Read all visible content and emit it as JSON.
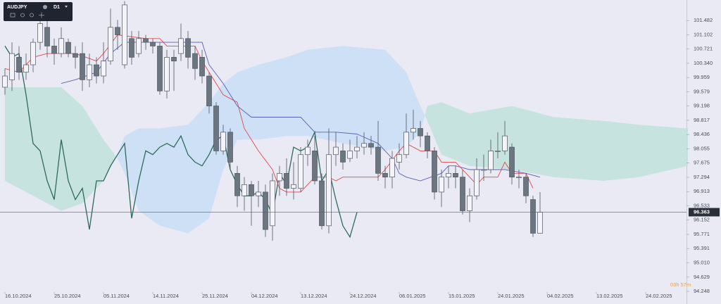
{
  "chart_data": {
    "type": "candlestick",
    "symbol": "AUDJPY",
    "timeframe": "D1",
    "countdown": "03h 57m",
    "current_price": 96.363,
    "ylim": [
      94.23,
      102.03
    ],
    "yticks": [
      101.482,
      101.102,
      100.721,
      {
        "value": 100.34,
        "label": "100.340"
      },
      99.959,
      99.579,
      99.198,
      98.817,
      98.436,
      98.055,
      97.675,
      97.294,
      96.913,
      96.533,
      96.152,
      95.771,
      95.391,
      {
        "value": 95.01,
        "label": "95.010"
      },
      94.629,
      94.248
    ],
    "xlim": [
      -0.7,
      96.8
    ],
    "xticks": [
      {
        "value": 0,
        "label": "16.10.2024"
      },
      {
        "value": 7,
        "label": "25.10.2024"
      },
      {
        "value": 14,
        "label": "05.11.2024"
      },
      {
        "value": 21,
        "label": "14.11.2024"
      },
      {
        "value": 28,
        "label": "25.11.2024"
      },
      {
        "value": 35,
        "label": "04.12.2024"
      },
      {
        "value": 42,
        "label": "13.12.2024"
      },
      {
        "value": 49,
        "label": "24.12.2024"
      },
      {
        "value": 56,
        "label": "06.01.2025"
      },
      {
        "value": 63,
        "label": "15.01.2025"
      },
      {
        "value": 70,
        "label": "24.01.2025"
      },
      {
        "value": 77,
        "label": "04.02.2025"
      },
      {
        "value": 84,
        "label": "13.02.2025"
      },
      {
        "value": 91,
        "label": "24.02.2025"
      }
    ],
    "up_color": "#f3f3f8",
    "down_color": "#6b7680",
    "open": [
      99.7,
      99.9,
      100.5,
      100.1,
      100.3,
      100.9,
      101.3,
      100.8,
      100.6,
      100.9,
      100.6,
      100.6,
      99.9,
      100.3,
      100.0,
      100.4,
      101.3,
      100.3,
      101.0,
      100.6,
      101.0,
      100.9,
      100.8,
      99.6,
      100.5,
      100.6,
      101.0,
      100.6,
      100.5,
      100.0,
      99.2,
      98.0,
      98.5,
      97.4,
      96.8,
      97.1,
      96.8,
      96.9,
      96.0,
      97.2,
      97.4,
      97.0,
      97.0,
      97.9,
      98.0,
      97.2,
      96.0,
      97.9,
      98.0,
      97.8,
      98.0,
      98.1,
      98.2,
      98.1,
      97.4,
      97.3,
      97.7,
      97.9,
      98.5,
      98.6,
      98.4,
      98.0,
      96.9,
      97.3,
      97.4,
      97.3,
      96.4,
      96.8,
      97.5,
      97.5,
      98.0,
      98.0,
      98.1,
      97.3,
      97.3,
      96.7,
      95.8
    ],
    "high": [
      100.2,
      100.9,
      100.8,
      100.6,
      101.0,
      101.7,
      101.5,
      101.0,
      101.3,
      101.0,
      100.8,
      100.9,
      100.6,
      100.5,
      100.9,
      101.8,
      101.5,
      102.0,
      101.2,
      101.2,
      101.1,
      101.0,
      100.9,
      100.7,
      100.7,
      101.4,
      101.2,
      100.8,
      100.7,
      100.1,
      99.3,
      98.7,
      98.6,
      97.6,
      97.3,
      97.2,
      97.2,
      97.1,
      97.4,
      97.6,
      97.8,
      97.7,
      98.1,
      98.3,
      98.4,
      97.4,
      98.6,
      98.5,
      98.2,
      98.3,
      98.4,
      98.5,
      98.4,
      98.8,
      97.6,
      98.0,
      98.2,
      99.0,
      99.1,
      98.8,
      98.5,
      98.1,
      97.5,
      97.6,
      97.6,
      97.5,
      97.0,
      97.8,
      97.9,
      98.3,
      98.5,
      98.8,
      98.2,
      97.5,
      97.4,
      96.8,
      96.9
    ],
    "low": [
      99.5,
      99.6,
      99.9,
      99.9,
      100.1,
      100.7,
      100.5,
      100.3,
      100.5,
      100.5,
      100.2,
      99.6,
      99.7,
      99.8,
      99.8,
      100.3,
      100.7,
      100.2,
      100.3,
      100.5,
      100.7,
      100.6,
      99.5,
      99.4,
      99.6,
      100.4,
      100.2,
      99.9,
      99.8,
      99.0,
      97.9,
      97.9,
      97.5,
      96.5,
      96.4,
      96.0,
      96.5,
      95.7,
      95.6,
      96.8,
      96.8,
      96.7,
      96.9,
      97.6,
      97.1,
      95.9,
      95.8,
      97.6,
      97.5,
      97.7,
      97.8,
      97.9,
      97.9,
      97.2,
      97.0,
      97.0,
      97.5,
      97.8,
      98.3,
      98.1,
      97.8,
      96.7,
      96.5,
      97.0,
      97.0,
      96.3,
      96.1,
      96.7,
      97.2,
      97.4,
      97.8,
      97.9,
      97.1,
      97.0,
      96.6,
      95.7,
      95.8
    ],
    "close": [
      100.0,
      100.6,
      100.1,
      100.3,
      100.9,
      101.4,
      100.8,
      100.6,
      101.0,
      100.6,
      100.5,
      99.9,
      100.3,
      100.0,
      100.4,
      101.3,
      101.1,
      101.9,
      100.5,
      101.0,
      100.9,
      100.8,
      99.6,
      100.5,
      100.4,
      101.0,
      100.5,
      100.2,
      100.0,
      99.2,
      98.0,
      98.5,
      97.7,
      96.8,
      97.1,
      96.8,
      96.9,
      95.9,
      97.2,
      97.4,
      97.0,
      97.1,
      97.9,
      98.1,
      97.2,
      96.0,
      97.9,
      98.1,
      97.7,
      98.0,
      98.1,
      98.2,
      98.1,
      97.4,
      97.3,
      97.8,
      97.9,
      98.5,
      98.6,
      98.4,
      98.0,
      96.9,
      97.3,
      97.4,
      97.3,
      96.4,
      96.8,
      97.5,
      97.5,
      98.0,
      98.0,
      98.4,
      97.3,
      97.3,
      96.8,
      95.8,
      96.363
    ],
    "tenkan": {
      "color": "#e0474c",
      "x": [
        0,
        2,
        4,
        6,
        10,
        13,
        14,
        16,
        20,
        22,
        23,
        27,
        28,
        30,
        31,
        33,
        34,
        36,
        38,
        39,
        40,
        42,
        44,
        46,
        47,
        48,
        53,
        54,
        56,
        57,
        59,
        61,
        62,
        64,
        65,
        67,
        68,
        70,
        71,
        72,
        74,
        75
      ],
      "values": [
        100.2,
        100.1,
        100.5,
        100.6,
        100.6,
        100.4,
        100.6,
        101.1,
        101.0,
        101.0,
        100.8,
        100.8,
        100.4,
        99.8,
        99.5,
        99.3,
        98.6,
        98.0,
        97.5,
        97.0,
        96.9,
        96.9,
        97.3,
        97.3,
        97.2,
        97.3,
        97.3,
        97.5,
        98.0,
        98.2,
        98.0,
        98.0,
        97.7,
        97.7,
        97.5,
        97.1,
        97.3,
        97.3,
        97.7,
        97.4,
        97.4,
        97.0
      ]
    },
    "kijun": {
      "color": "#5b5fb5",
      "x": [
        8,
        10,
        13,
        15,
        17,
        25,
        28,
        29,
        31,
        33,
        35,
        42,
        44,
        47,
        50,
        53,
        55,
        56,
        57,
        59,
        62,
        63,
        64,
        66,
        70,
        71,
        74,
        76
      ],
      "values": [
        99.8,
        99.9,
        100.1,
        100.6,
        100.9,
        100.9,
        100.9,
        100.3,
        99.8,
        99.2,
        98.9,
        98.9,
        98.5,
        98.5,
        98.45,
        98.2,
        97.8,
        97.4,
        97.3,
        97.2,
        97.4,
        97.6,
        97.6,
        97.5,
        97.5,
        97.5,
        97.4,
        97.3
      ]
    },
    "chikou": {
      "color": "#2e6b5a",
      "x": [
        0,
        1,
        2,
        3,
        4,
        5,
        6,
        7,
        8,
        9,
        10,
        11,
        12,
        13,
        14,
        15,
        16,
        17,
        18,
        19,
        20,
        21,
        22,
        23,
        24,
        25,
        26,
        27,
        28,
        29,
        30,
        31,
        32,
        33,
        34,
        35,
        36,
        37,
        38,
        39,
        40,
        41,
        42,
        43,
        44,
        45,
        46,
        47,
        48,
        49,
        50
      ],
      "values": [
        100.8,
        100.5,
        100.6,
        99.5,
        98.2,
        98.0,
        97.2,
        96.7,
        98.3,
        97.2,
        96.7,
        97.0,
        95.9,
        97.2,
        97.2,
        97.6,
        97.9,
        98.2,
        96.2,
        97.2,
        98.0,
        97.9,
        98.1,
        98.2,
        98.1,
        98.4,
        97.9,
        97.7,
        97.6,
        97.9,
        98.3,
        98.4,
        97.5,
        97.1,
        96.8,
        96.8,
        96.9,
        96.7,
        96.3,
        97.4,
        97.1,
        98.1,
        98.0,
        98.1,
        98.5,
        97.2,
        97.5,
        96.7,
        96.0,
        95.7,
        96.36
      ]
    },
    "cloud": {
      "bull_color": "#bfe2dc",
      "bear_color": "#c8def4",
      "x": [
        0,
        4,
        8,
        11,
        14,
        16,
        17,
        19,
        22,
        26,
        29,
        31,
        33,
        36,
        40,
        43,
        48,
        54,
        57,
        59,
        60,
        62,
        66,
        72,
        78,
        85,
        90,
        97
      ],
      "span_a": [
        99.7,
        99.7,
        99.7,
        99.2,
        98.3,
        97.8,
        97.4,
        96.4,
        96.0,
        95.8,
        96.2,
        97.5,
        98.3,
        98.3,
        98.4,
        98.4,
        98.2,
        98.0,
        98.1,
        98.5,
        99.2,
        99.3,
        99.0,
        99.2,
        98.9,
        98.8,
        98.7,
        98.6
      ],
      "span_b": [
        97.2,
        96.8,
        96.4,
        96.6,
        97.2,
        97.9,
        98.4,
        98.6,
        98.6,
        98.7,
        99.3,
        99.8,
        100.1,
        100.3,
        100.5,
        100.7,
        100.8,
        100.7,
        100.1,
        99.2,
        98.8,
        97.9,
        97.6,
        97.5,
        97.3,
        97.2,
        97.3,
        97.6
      ]
    }
  }
}
